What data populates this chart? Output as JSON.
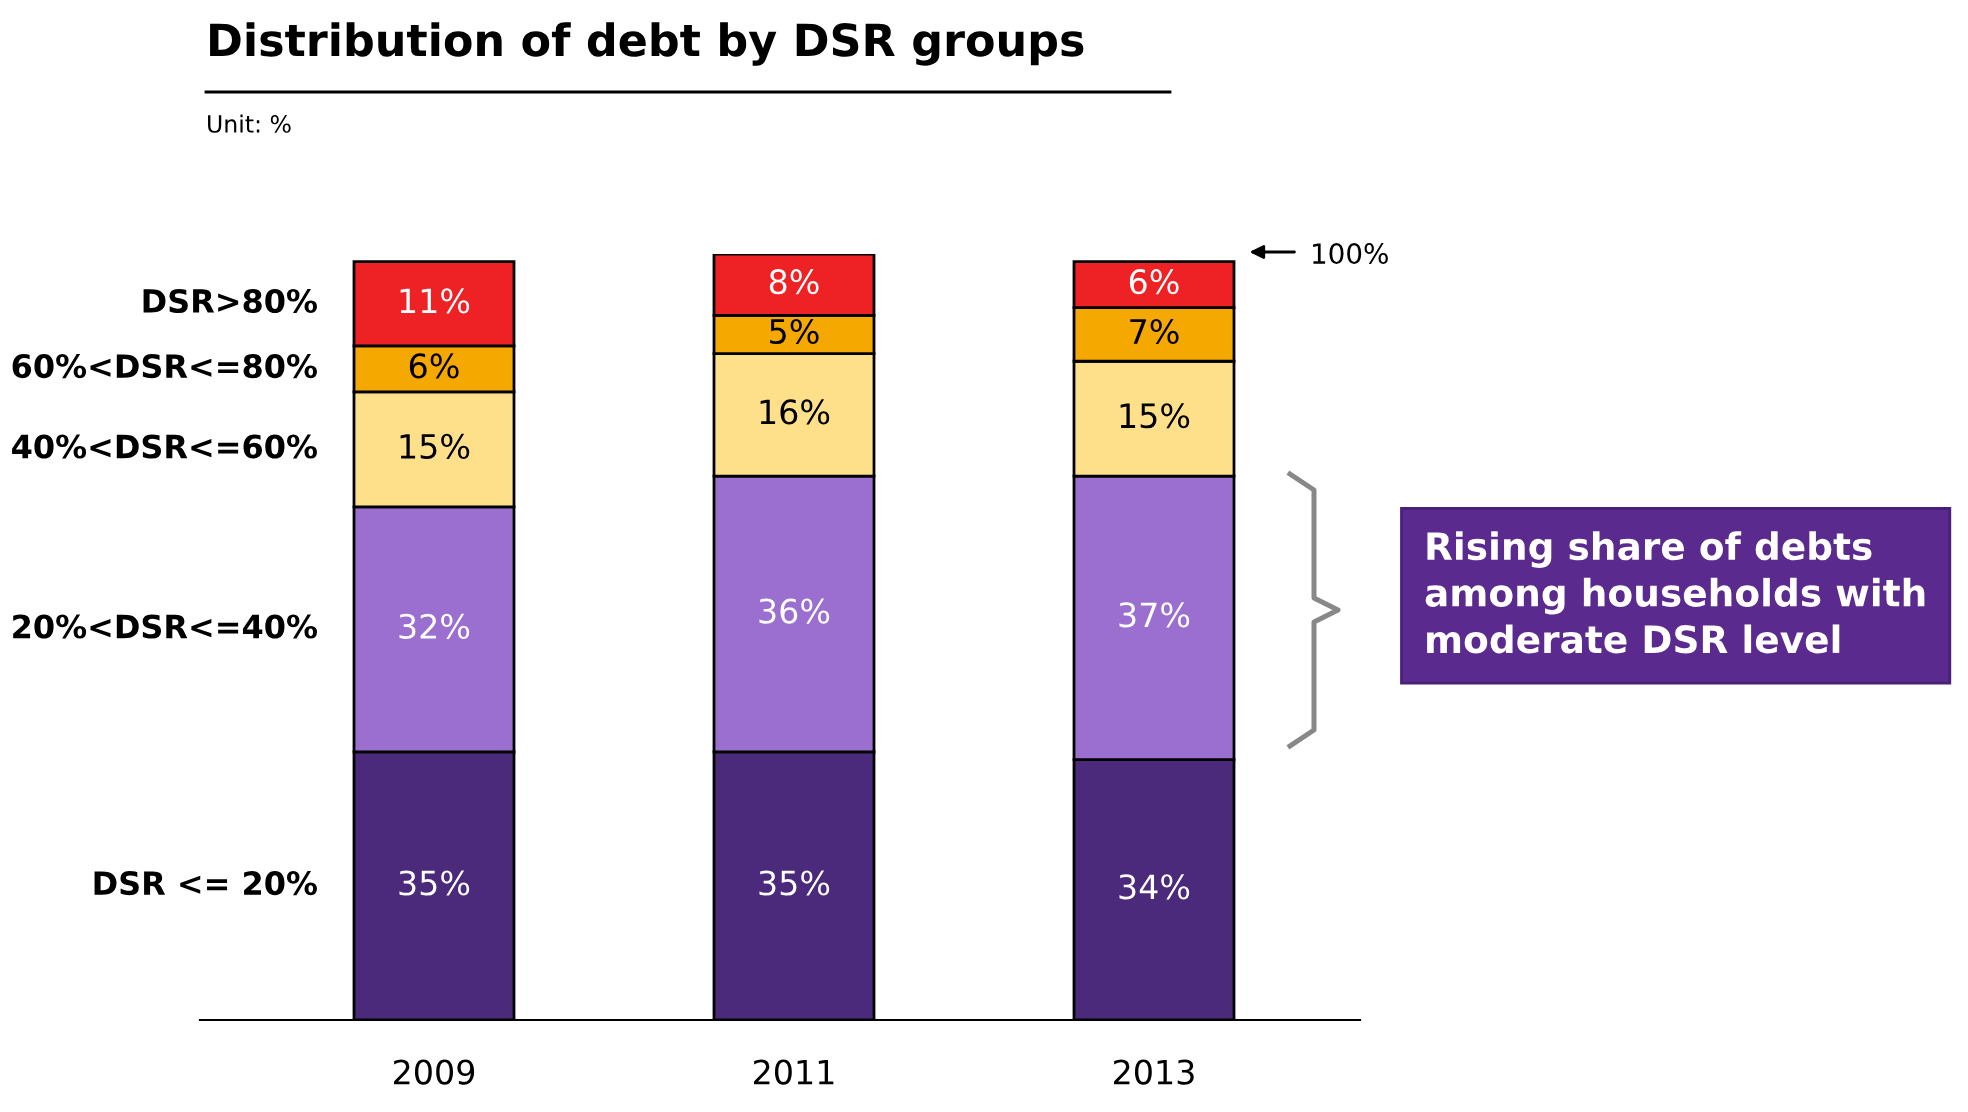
{
  "chart_data": {
    "type": "bar",
    "stacked": true,
    "title": "Distribution of debt by DSR groups",
    "categories": [
      "2009",
      "2011",
      "2013"
    ],
    "series": [
      {
        "name": "DSR <= 20%",
        "color": "#4b2a7b",
        "values": [
          35,
          35,
          34
        ],
        "value_labels": [
          "35%",
          "35%",
          "34%"
        ]
      },
      {
        "name": "20%<DSR<=40%",
        "color": "#9b6fd0",
        "values": [
          32,
          36,
          37
        ],
        "value_labels": [
          "32%",
          "36%",
          "37%"
        ]
      },
      {
        "name": "40%<DSR<=60%",
        "color": "#ffe08a",
        "values": [
          15,
          16,
          15
        ],
        "value_labels": [
          "15%",
          "16%",
          "15%"
        ]
      },
      {
        "name": "60%<DSR<=80%",
        "color": "#f5a800",
        "values": [
          6,
          5,
          7
        ],
        "value_labels": [
          "6%",
          "5%",
          "7%"
        ]
      },
      {
        "name": "DSR>80%",
        "color": "#ee2124",
        "values": [
          11,
          8,
          6
        ],
        "value_labels": [
          "11%",
          "8%",
          "6%"
        ]
      }
    ],
    "legend": false,
    "tick_labels": "x",
    "annotations": [
      "Unit: %",
      "100%",
      "Rising share of debts among households with moderate DSR level"
    ]
  }
}
